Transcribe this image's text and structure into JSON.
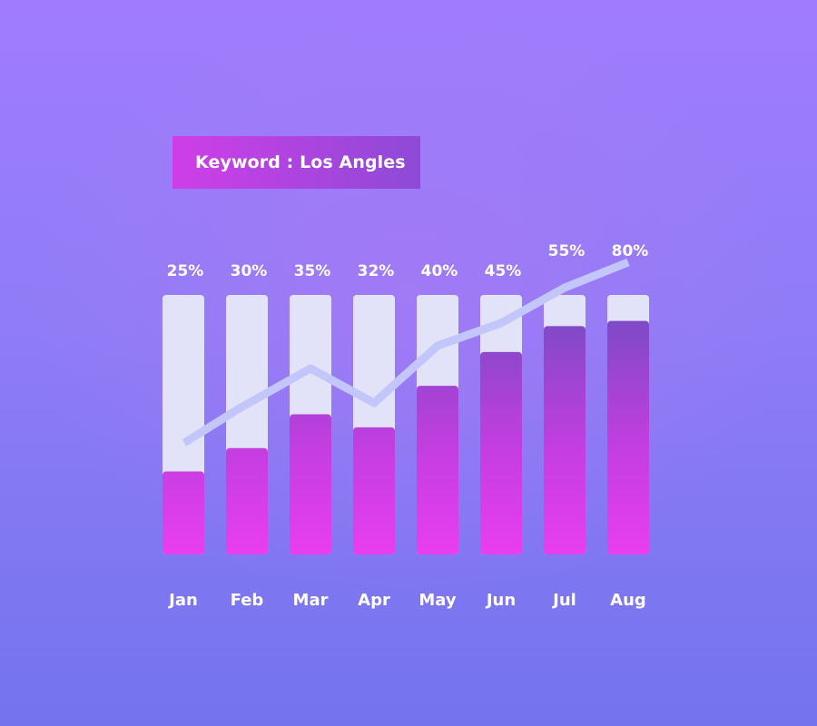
{
  "keyword_label": "Keyword : Los Angles",
  "colors": {
    "bar_track": "#e2e3f8",
    "bar_fill_bottom": "#e83ef0",
    "bar_fill_top_high": "#7d4ac6",
    "trend_line": "#c3c6fb",
    "label_text": "#ffffff"
  },
  "chart_data": {
    "type": "bar",
    "categories": [
      "Jan",
      "Feb",
      "Mar",
      "Apr",
      "May",
      "Jun",
      "Jul",
      "Aug"
    ],
    "values": [
      25,
      30,
      35,
      32,
      40,
      45,
      55,
      80
    ],
    "value_labels": [
      "25%",
      "30%",
      "35%",
      "32%",
      "40%",
      "45%",
      "55%",
      "80%"
    ],
    "bar_fill_fraction": [
      0.32,
      0.41,
      0.54,
      0.49,
      0.65,
      0.78,
      0.88,
      0.9
    ],
    "trend_line": [
      25,
      30,
      35,
      32,
      40,
      45,
      55,
      80
    ],
    "title": "",
    "xlabel": "",
    "ylabel": "",
    "grid": false,
    "legend": "none"
  }
}
